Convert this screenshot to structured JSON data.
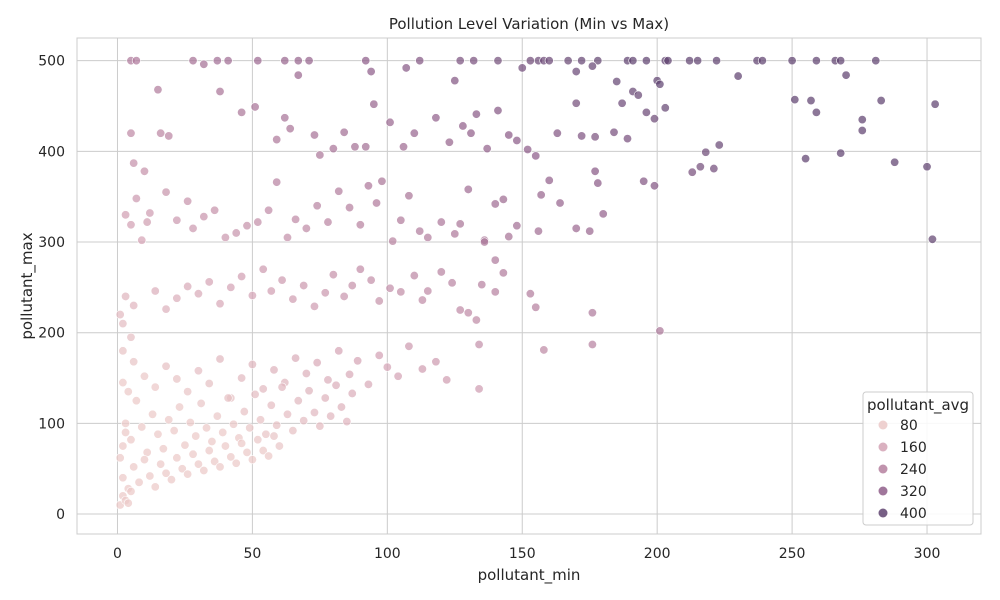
{
  "chart_data": {
    "type": "scatter",
    "title": "Pollution Level Variation (Min vs Max)",
    "xlabel": "pollutant_min",
    "ylabel": "pollutant_max",
    "xlim": [
      -15,
      320
    ],
    "ylim": [
      -22,
      525
    ],
    "xticks": [
      0,
      50,
      100,
      150,
      200,
      250,
      300
    ],
    "yticks": [
      0,
      100,
      200,
      300,
      400,
      500
    ],
    "grid": true,
    "hue_variable": "pollutant_avg",
    "legend": {
      "title": "pollutant_avg",
      "placement": "lower-right",
      "entries": [
        {
          "label": "80",
          "value": 80,
          "color": "#ebc9c8"
        },
        {
          "label": "160",
          "value": 160,
          "color": "#d4a3b5"
        },
        {
          "label": "240",
          "value": 240,
          "color": "#b5809f"
        },
        {
          "label": "320",
          "value": 320,
          "color": "#8f5e8a"
        },
        {
          "label": "400",
          "value": 400,
          "color": "#5f4370"
        }
      ]
    },
    "points": [
      [
        5,
        500
      ],
      [
        7,
        500
      ],
      [
        28,
        500
      ],
      [
        32,
        496
      ],
      [
        37,
        500
      ],
      [
        41,
        500
      ],
      [
        52,
        500
      ],
      [
        62,
        500
      ],
      [
        67,
        500
      ],
      [
        71,
        500
      ],
      [
        92,
        500
      ],
      [
        112,
        500
      ],
      [
        127,
        500
      ],
      [
        132,
        500
      ],
      [
        141,
        500
      ],
      [
        153,
        500
      ],
      [
        156,
        500
      ],
      [
        158,
        500
      ],
      [
        160,
        500
      ],
      [
        167,
        500
      ],
      [
        172,
        500
      ],
      [
        178,
        500
      ],
      [
        189,
        500
      ],
      [
        191,
        500
      ],
      [
        196,
        500
      ],
      [
        203,
        500
      ],
      [
        204,
        500
      ],
      [
        212,
        500
      ],
      [
        215,
        500
      ],
      [
        222,
        500
      ],
      [
        237,
        500
      ],
      [
        239,
        500
      ],
      [
        250,
        500
      ],
      [
        259,
        500
      ],
      [
        266,
        500
      ],
      [
        268,
        500
      ],
      [
        281,
        500
      ],
      [
        15,
        468
      ],
      [
        38,
        466
      ],
      [
        67,
        484
      ],
      [
        94,
        488
      ],
      [
        107,
        492
      ],
      [
        125,
        478
      ],
      [
        150,
        492
      ],
      [
        170,
        488
      ],
      [
        176,
        494
      ],
      [
        185,
        477
      ],
      [
        191,
        466
      ],
      [
        200,
        478
      ],
      [
        230,
        483
      ],
      [
        270,
        484
      ],
      [
        283,
        456
      ],
      [
        303,
        452
      ],
      [
        251,
        457
      ],
      [
        257,
        456
      ],
      [
        259,
        443
      ],
      [
        276,
        435
      ],
      [
        276,
        423
      ],
      [
        255,
        392
      ],
      [
        268,
        398
      ],
      [
        288,
        388
      ],
      [
        300,
        383
      ],
      [
        302,
        303
      ],
      [
        5,
        420
      ],
      [
        16,
        420
      ],
      [
        19,
        417
      ],
      [
        6,
        387
      ],
      [
        10,
        378
      ],
      [
        3,
        330
      ],
      [
        5,
        319
      ],
      [
        12,
        332
      ],
      [
        18,
        355
      ],
      [
        22,
        324
      ],
      [
        26,
        345
      ],
      [
        28,
        315
      ],
      [
        9,
        302
      ],
      [
        7,
        348
      ],
      [
        11,
        322
      ],
      [
        46,
        443
      ],
      [
        51,
        449
      ],
      [
        59,
        413
      ],
      [
        62,
        437
      ],
      [
        64,
        425
      ],
      [
        73,
        418
      ],
      [
        75,
        396
      ],
      [
        80,
        403
      ],
      [
        84,
        421
      ],
      [
        88,
        405
      ],
      [
        92,
        405
      ],
      [
        95,
        452
      ],
      [
        101,
        432
      ],
      [
        106,
        405
      ],
      [
        110,
        420
      ],
      [
        118,
        437
      ],
      [
        123,
        410
      ],
      [
        128,
        428
      ],
      [
        131,
        420
      ],
      [
        133,
        441
      ],
      [
        137,
        403
      ],
      [
        141,
        445
      ],
      [
        145,
        418
      ],
      [
        148,
        412
      ],
      [
        152,
        402
      ],
      [
        155,
        395
      ],
      [
        163,
        420
      ],
      [
        170,
        453
      ],
      [
        172,
        417
      ],
      [
        177,
        416
      ],
      [
        184,
        421
      ],
      [
        187,
        453
      ],
      [
        193,
        462
      ],
      [
        196,
        443
      ],
      [
        199,
        436
      ],
      [
        201,
        474
      ],
      [
        203,
        448
      ],
      [
        213,
        377
      ],
      [
        216,
        383
      ],
      [
        218,
        399
      ],
      [
        221,
        381
      ],
      [
        223,
        407
      ],
      [
        195,
        367
      ],
      [
        199,
        362
      ],
      [
        189,
        414
      ],
      [
        177,
        378
      ],
      [
        178,
        365
      ],
      [
        180,
        331
      ],
      [
        160,
        368
      ],
      [
        170,
        315
      ],
      [
        175,
        312
      ],
      [
        164,
        343
      ],
      [
        157,
        352
      ],
      [
        156,
        312
      ],
      [
        148,
        318
      ],
      [
        145,
        306
      ],
      [
        143,
        347
      ],
      [
        140,
        342
      ],
      [
        136,
        302
      ],
      [
        130,
        358
      ],
      [
        127,
        320
      ],
      [
        125,
        309
      ],
      [
        120,
        322
      ],
      [
        115,
        305
      ],
      [
        112,
        312
      ],
      [
        108,
        351
      ],
      [
        105,
        324
      ],
      [
        102,
        301
      ],
      [
        98,
        367
      ],
      [
        96,
        343
      ],
      [
        93,
        362
      ],
      [
        90,
        319
      ],
      [
        86,
        338
      ],
      [
        82,
        356
      ],
      [
        78,
        322
      ],
      [
        74,
        340
      ],
      [
        70,
        315
      ],
      [
        66,
        325
      ],
      [
        63,
        305
      ],
      [
        59,
        366
      ],
      [
        56,
        335
      ],
      [
        52,
        322
      ],
      [
        48,
        318
      ],
      [
        44,
        310
      ],
      [
        40,
        305
      ],
      [
        36,
        335
      ],
      [
        32,
        328
      ],
      [
        136,
        300
      ],
      [
        140,
        280
      ],
      [
        143,
        266
      ],
      [
        135,
        253
      ],
      [
        140,
        245
      ],
      [
        153,
        243
      ],
      [
        155,
        228
      ],
      [
        133,
        214
      ],
      [
        130,
        222
      ],
      [
        127,
        225
      ],
      [
        124,
        255
      ],
      [
        120,
        267
      ],
      [
        115,
        246
      ],
      [
        113,
        236
      ],
      [
        110,
        263
      ],
      [
        105,
        245
      ],
      [
        101,
        249
      ],
      [
        97,
        235
      ],
      [
        94,
        258
      ],
      [
        90,
        270
      ],
      [
        87,
        252
      ],
      [
        84,
        240
      ],
      [
        80,
        264
      ],
      [
        77,
        244
      ],
      [
        73,
        229
      ],
      [
        69,
        252
      ],
      [
        65,
        237
      ],
      [
        61,
        258
      ],
      [
        57,
        246
      ],
      [
        54,
        270
      ],
      [
        50,
        241
      ],
      [
        46,
        262
      ],
      [
        42,
        250
      ],
      [
        38,
        232
      ],
      [
        34,
        256
      ],
      [
        30,
        243
      ],
      [
        26,
        251
      ],
      [
        22,
        238
      ],
      [
        18,
        226
      ],
      [
        14,
        246
      ],
      [
        176,
        222
      ],
      [
        201,
        202
      ],
      [
        158,
        181
      ],
      [
        176,
        187
      ],
      [
        134,
        187
      ],
      [
        134,
        138
      ],
      [
        122,
        148
      ],
      [
        118,
        168
      ],
      [
        113,
        160
      ],
      [
        108,
        185
      ],
      [
        104,
        152
      ],
      [
        100,
        162
      ],
      [
        97,
        175
      ],
      [
        93,
        143
      ],
      [
        89,
        169
      ],
      [
        86,
        154
      ],
      [
        82,
        180
      ],
      [
        78,
        148
      ],
      [
        74,
        167
      ],
      [
        70,
        155
      ],
      [
        66,
        172
      ],
      [
        62,
        145
      ],
      [
        58,
        159
      ],
      [
        54,
        138
      ],
      [
        50,
        165
      ],
      [
        46,
        150
      ],
      [
        42,
        128
      ],
      [
        38,
        171
      ],
      [
        34,
        144
      ],
      [
        30,
        158
      ],
      [
        26,
        135
      ],
      [
        22,
        149
      ],
      [
        18,
        163
      ],
      [
        14,
        140
      ],
      [
        10,
        152
      ],
      [
        6,
        168
      ],
      [
        2,
        145
      ],
      [
        3,
        100
      ],
      [
        5,
        82
      ],
      [
        7,
        125
      ],
      [
        9,
        96
      ],
      [
        11,
        68
      ],
      [
        13,
        110
      ],
      [
        15,
        88
      ],
      [
        17,
        72
      ],
      [
        19,
        104
      ],
      [
        21,
        92
      ],
      [
        23,
        118
      ],
      [
        25,
        76
      ],
      [
        27,
        101
      ],
      [
        29,
        86
      ],
      [
        31,
        122
      ],
      [
        33,
        95
      ],
      [
        35,
        80
      ],
      [
        37,
        108
      ],
      [
        39,
        90
      ],
      [
        41,
        128
      ],
      [
        43,
        99
      ],
      [
        45,
        84
      ],
      [
        47,
        113
      ],
      [
        49,
        95
      ],
      [
        51,
        132
      ],
      [
        53,
        104
      ],
      [
        55,
        88
      ],
      [
        57,
        120
      ],
      [
        59,
        98
      ],
      [
        61,
        140
      ],
      [
        63,
        110
      ],
      [
        65,
        92
      ],
      [
        67,
        125
      ],
      [
        69,
        103
      ],
      [
        71,
        136
      ],
      [
        73,
        112
      ],
      [
        75,
        97
      ],
      [
        77,
        128
      ],
      [
        79,
        108
      ],
      [
        81,
        142
      ],
      [
        83,
        118
      ],
      [
        85,
        102
      ],
      [
        87,
        133
      ],
      [
        2,
        40
      ],
      [
        4,
        28
      ],
      [
        6,
        52
      ],
      [
        8,
        35
      ],
      [
        10,
        60
      ],
      [
        12,
        42
      ],
      [
        14,
        30
      ],
      [
        16,
        55
      ],
      [
        18,
        45
      ],
      [
        20,
        38
      ],
      [
        22,
        62
      ],
      [
        24,
        50
      ],
      [
        26,
        44
      ],
      [
        28,
        66
      ],
      [
        30,
        55
      ],
      [
        32,
        48
      ],
      [
        34,
        70
      ],
      [
        36,
        58
      ],
      [
        38,
        52
      ],
      [
        40,
        75
      ],
      [
        42,
        63
      ],
      [
        44,
        56
      ],
      [
        46,
        78
      ],
      [
        48,
        68
      ],
      [
        50,
        60
      ],
      [
        52,
        82
      ],
      [
        54,
        70
      ],
      [
        56,
        64
      ],
      [
        58,
        86
      ],
      [
        60,
        75
      ],
      [
        1,
        10
      ],
      [
        2,
        20
      ],
      [
        3,
        15
      ],
      [
        4,
        12
      ],
      [
        5,
        25
      ],
      [
        1,
        62
      ],
      [
        2,
        75
      ],
      [
        3,
        90
      ],
      [
        4,
        135
      ],
      [
        2,
        180
      ],
      [
        1,
        220
      ],
      [
        3,
        240
      ],
      [
        2,
        210
      ],
      [
        5,
        195
      ],
      [
        6,
        230
      ]
    ]
  }
}
